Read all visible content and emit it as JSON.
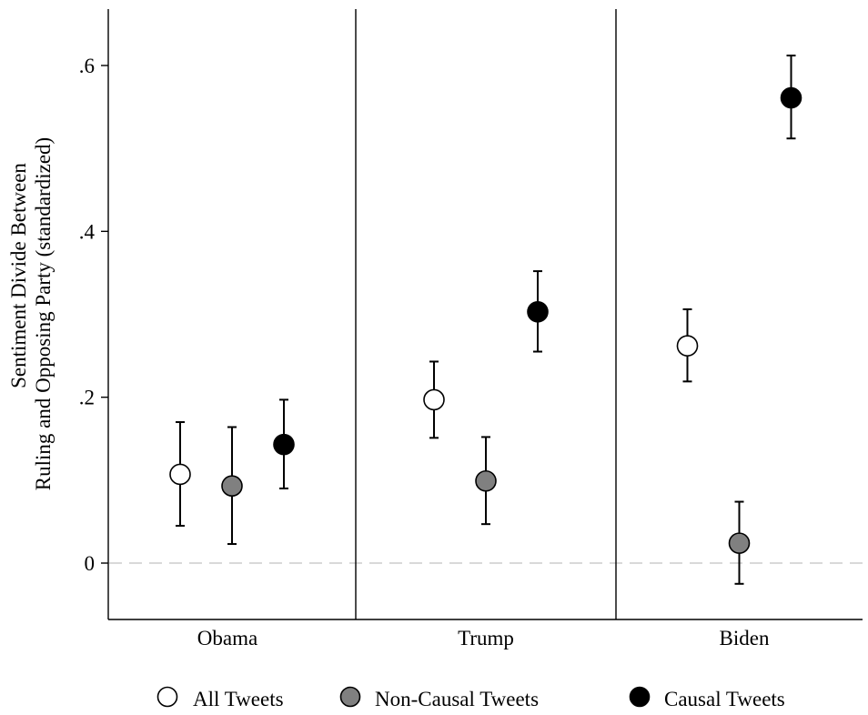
{
  "chart_data": {
    "type": "scatter",
    "subtype": "point-estimates-with-error-bars",
    "ylabel_lines": [
      "Sentiment Divide Between",
      "Ruling and Opposing Party (standardized)"
    ],
    "xlabel": "",
    "ylim": [
      -0.068,
      0.668
    ],
    "yticks": [
      0,
      0.2,
      0.4,
      0.6
    ],
    "ytick_labels": [
      "0",
      ".2",
      ".4",
      ".6"
    ],
    "reference_line": 0,
    "panels": [
      "Obama",
      "Trump",
      "Biden"
    ],
    "series": [
      {
        "name": "All Tweets",
        "color": "#ffffff",
        "values": [
          0.107,
          0.197,
          0.262
        ],
        "ci_low": [
          0.045,
          0.151,
          0.219
        ],
        "ci_high": [
          0.17,
          0.243,
          0.306
        ]
      },
      {
        "name": "Non-Causal Tweets",
        "color": "#808080",
        "values": [
          0.093,
          0.099,
          0.024
        ],
        "ci_low": [
          0.023,
          0.047,
          -0.025
        ],
        "ci_high": [
          0.164,
          0.152,
          0.074
        ]
      },
      {
        "name": "Causal Tweets",
        "color": "#000000",
        "values": [
          0.143,
          0.303,
          0.561
        ],
        "ci_low": [
          0.09,
          0.255,
          0.512
        ],
        "ci_high": [
          0.197,
          0.352,
          0.612
        ]
      }
    ],
    "legend": {
      "position": "bottom",
      "labels": [
        "All Tweets",
        "Non-Causal Tweets",
        "Causal Tweets"
      ]
    }
  }
}
